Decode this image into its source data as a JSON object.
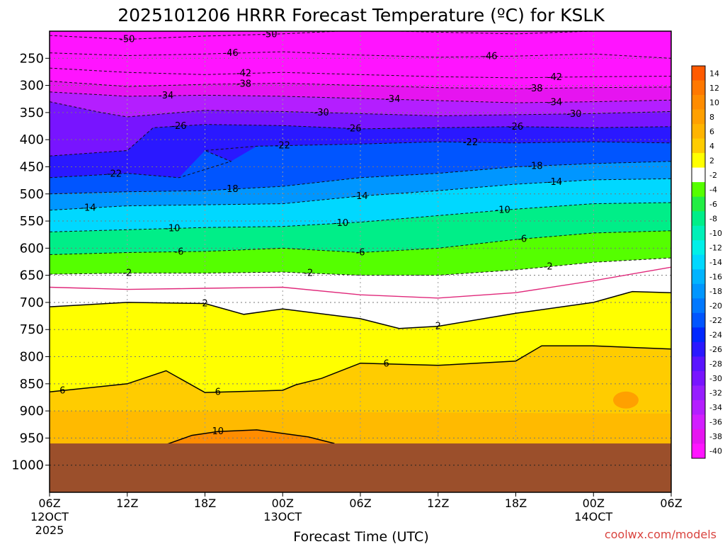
{
  "chart_data": {
    "type": "heatmap",
    "title": "2025101206 HRRR Forecast Temperature (ºC) for KSLK",
    "xlabel": "Forecast Time (UTC)",
    "ylabel": "",
    "credit": "coolwx.com/models",
    "x": [
      {
        "hour": 0,
        "label": "06Z",
        "date": "12OCT",
        "year": "2025"
      },
      {
        "hour": 6,
        "label": "12Z"
      },
      {
        "hour": 12,
        "label": "18Z"
      },
      {
        "hour": 18,
        "label": "00Z",
        "date": "13OCT"
      },
      {
        "hour": 24,
        "label": "06Z"
      },
      {
        "hour": 30,
        "label": "12Z"
      },
      {
        "hour": 36,
        "label": "18Z"
      },
      {
        "hour": 42,
        "label": "00Z",
        "date": "14OCT"
      },
      {
        "hour": 48,
        "label": "06Z"
      }
    ],
    "y_ticks": [
      "250",
      "300",
      "350",
      "400",
      "450",
      "500",
      "550",
      "600",
      "650",
      "700",
      "750",
      "800",
      "850",
      "900",
      "950",
      "1000"
    ],
    "ylim": [
      1050,
      200
    ],
    "xlim": [
      0,
      48
    ],
    "ground_pressure": 960,
    "colorbar": {
      "labels": [
        "14",
        "12",
        "10",
        "8",
        "6",
        "4",
        "2",
        "-2",
        "-4",
        "-6",
        "-8",
        "-10",
        "-12",
        "-14",
        "-16",
        "-18",
        "-20",
        "-22",
        "-24",
        "-26",
        "-28",
        "-30",
        "-32",
        "-34",
        "-36",
        "-38",
        "-40"
      ],
      "colors": [
        "#ff5a00",
        "#ff7800",
        "#ff8c00",
        "#ffa000",
        "#ffb400",
        "#ffcc00",
        "#ffff00",
        "#ffffff",
        "#55ff00",
        "#22ee44",
        "#00ee88",
        "#00f0b8",
        "#00f0e8",
        "#00d8ff",
        "#00b4ff",
        "#0096ff",
        "#0078ff",
        "#0055ff",
        "#0028ff",
        "#2a18ff",
        "#5a14ff",
        "#7814ff",
        "#961eff",
        "#b41eff",
        "#d21eff",
        "#e614f0",
        "#ff14ff"
      ]
    },
    "layer_colors": [
      {
        "t": -50,
        "color": "#ff14ff"
      },
      {
        "t": -42,
        "color": "#ff14ff"
      },
      {
        "t": -38,
        "color": "#e614f0"
      },
      {
        "t": -34,
        "color": "#b41eff"
      },
      {
        "t": -30,
        "color": "#7814ff"
      },
      {
        "t": -26,
        "color": "#2a18ff"
      },
      {
        "t": -22,
        "color": "#0055ff"
      },
      {
        "t": -18,
        "color": "#0096ff"
      },
      {
        "t": -14,
        "color": "#00d8ff"
      },
      {
        "t": -10,
        "color": "#00ee88"
      },
      {
        "t": -6,
        "color": "#55ff00"
      },
      {
        "t": -2,
        "color": "#ffffff"
      },
      {
        "t": 2,
        "color": "#ffff00"
      },
      {
        "t": 6,
        "color": "#ffcc00"
      },
      {
        "t": 10,
        "color": "#ffa000"
      },
      {
        "t": 14,
        "color": "#ff7800"
      }
    ],
    "contours": [
      {
        "value": -50,
        "label": "-50",
        "style": "dashed",
        "label_hours": [
          6,
          17
        ],
        "pressure": [
          [
            0,
            208
          ],
          [
            6,
            215
          ],
          [
            12,
            209
          ],
          [
            18,
            205
          ],
          [
            24,
            198
          ],
          [
            30,
            202
          ],
          [
            36,
            205
          ],
          [
            42,
            200
          ],
          [
            48,
            193
          ]
        ]
      },
      {
        "value": -46,
        "label": "-46",
        "style": "dashed",
        "label_hours": [
          14,
          34
        ],
        "pressure": [
          [
            0,
            240
          ],
          [
            6,
            245
          ],
          [
            12,
            242
          ],
          [
            18,
            238
          ],
          [
            24,
            244
          ],
          [
            30,
            248
          ],
          [
            36,
            246
          ],
          [
            42,
            242
          ],
          [
            48,
            250
          ]
        ]
      },
      {
        "value": -42,
        "label": "-42",
        "style": "dashed",
        "label_hours": [
          15,
          39
        ],
        "pressure": [
          [
            0,
            268
          ],
          [
            6,
            276
          ],
          [
            12,
            280
          ],
          [
            18,
            276
          ],
          [
            24,
            280
          ],
          [
            30,
            284
          ],
          [
            36,
            286
          ],
          [
            42,
            284
          ],
          [
            48,
            283
          ]
        ]
      },
      {
        "value": -38,
        "label": "-38",
        "style": "dashed",
        "label_hours": [
          15,
          37.5
        ],
        "pressure": [
          [
            0,
            292
          ],
          [
            6,
            302
          ],
          [
            12,
            298
          ],
          [
            18,
            296
          ],
          [
            24,
            300
          ],
          [
            30,
            304
          ],
          [
            36,
            306
          ],
          [
            42,
            304
          ],
          [
            48,
            303
          ]
        ]
      },
      {
        "value": -34,
        "label": "-34",
        "style": "dashed",
        "label_hours": [
          9,
          26.5,
          39
        ],
        "pressure": [
          [
            0,
            312
          ],
          [
            6,
            320
          ],
          [
            12,
            318
          ],
          [
            18,
            320
          ],
          [
            24,
            324
          ],
          [
            30,
            328
          ],
          [
            36,
            332
          ],
          [
            42,
            330
          ],
          [
            48,
            327
          ]
        ]
      },
      {
        "value": -30,
        "label": "-30",
        "style": "dashed",
        "label_hours": [
          21,
          40.5
        ],
        "pressure": [
          [
            0,
            330
          ],
          [
            4,
            350
          ],
          [
            6,
            358
          ],
          [
            12,
            346
          ],
          [
            18,
            348
          ],
          [
            24,
            352
          ],
          [
            30,
            356
          ],
          [
            36,
            354
          ],
          [
            42,
            352
          ],
          [
            48,
            348
          ]
        ]
      },
      {
        "value": -26,
        "label": "-26",
        "style": "dashed",
        "label_hours": [
          10,
          23.5,
          36
        ],
        "pressure": [
          [
            0,
            430
          ],
          [
            6,
            420
          ],
          [
            8,
            378
          ],
          [
            12,
            372
          ],
          [
            18,
            374
          ],
          [
            24,
            380
          ],
          [
            30,
            378
          ],
          [
            36,
            376
          ],
          [
            42,
            378
          ],
          [
            48,
            376
          ]
        ]
      },
      {
        "value": -22,
        "label": "-22",
        "style": "dashed",
        "label_hours": [
          5,
          18,
          32.5
        ],
        "pressure": [
          [
            0,
            470
          ],
          [
            6,
            462
          ],
          [
            10,
            470
          ],
          [
            14,
            440
          ],
          [
            12,
            420
          ],
          [
            16,
            412
          ],
          [
            24,
            408
          ],
          [
            30,
            404
          ],
          [
            36,
            406
          ],
          [
            42,
            404
          ],
          [
            48,
            406
          ]
        ]
      },
      {
        "value": -18,
        "label": "-18",
        "style": "dashed",
        "label_hours": [
          14,
          37.5
        ],
        "pressure": [
          [
            0,
            500
          ],
          [
            6,
            496
          ],
          [
            12,
            494
          ],
          [
            18,
            486
          ],
          [
            24,
            470
          ],
          [
            30,
            462
          ],
          [
            36,
            450
          ],
          [
            42,
            444
          ],
          [
            48,
            440
          ]
        ]
      },
      {
        "value": -14,
        "label": "-14",
        "style": "dashed",
        "label_hours": [
          3,
          24,
          39
        ],
        "pressure": [
          [
            0,
            530
          ],
          [
            6,
            522
          ],
          [
            12,
            520
          ],
          [
            18,
            518
          ],
          [
            24,
            504
          ],
          [
            30,
            494
          ],
          [
            36,
            482
          ],
          [
            42,
            474
          ],
          [
            48,
            472
          ]
        ]
      },
      {
        "value": -10,
        "label": "-10",
        "style": "dashed",
        "label_hours": [
          9.5,
          22.5,
          35
        ],
        "pressure": [
          [
            0,
            570
          ],
          [
            6,
            566
          ],
          [
            12,
            562
          ],
          [
            18,
            560
          ],
          [
            24,
            552
          ],
          [
            30,
            540
          ],
          [
            36,
            528
          ],
          [
            42,
            518
          ],
          [
            48,
            516
          ]
        ]
      },
      {
        "value": -6,
        "label": "-6",
        "style": "dashed",
        "label_hours": [
          10,
          24,
          36.5
        ],
        "pressure": [
          [
            0,
            612
          ],
          [
            6,
            608
          ],
          [
            12,
            606
          ],
          [
            18,
            600
          ],
          [
            24,
            608
          ],
          [
            30,
            600
          ],
          [
            36,
            584
          ],
          [
            42,
            572
          ],
          [
            48,
            568
          ]
        ]
      },
      {
        "value": -2,
        "label": "-2",
        "style": "dashed",
        "label_hours": [
          6,
          20,
          38.5
        ],
        "pressure": [
          [
            0,
            648
          ],
          [
            6,
            646
          ],
          [
            12,
            646
          ],
          [
            18,
            644
          ],
          [
            24,
            650
          ],
          [
            30,
            650
          ],
          [
            36,
            640
          ],
          [
            42,
            626
          ],
          [
            48,
            618
          ]
        ]
      },
      {
        "value": 0,
        "label": "",
        "style": "freezing",
        "label_hours": [],
        "pressure": [
          [
            0,
            672
          ],
          [
            6,
            676
          ],
          [
            12,
            674
          ],
          [
            18,
            672
          ],
          [
            24,
            686
          ],
          [
            30,
            692
          ],
          [
            36,
            682
          ],
          [
            42,
            660
          ],
          [
            48,
            635
          ]
        ]
      },
      {
        "value": 2,
        "label": "2",
        "style": "solid",
        "label_hours": [
          12,
          30
        ],
        "pressure": [
          [
            0,
            708
          ],
          [
            6,
            700
          ],
          [
            12,
            702
          ],
          [
            15,
            722
          ],
          [
            18,
            712
          ],
          [
            24,
            730
          ],
          [
            27,
            748
          ],
          [
            30,
            744
          ],
          [
            36,
            720
          ],
          [
            42,
            700
          ],
          [
            45,
            680
          ],
          [
            48,
            682
          ]
        ]
      },
      {
        "value": 6,
        "label": "6",
        "style": "solid",
        "label_hours": [
          1,
          13,
          26
        ],
        "pressure": [
          [
            0,
            865
          ],
          [
            6,
            850
          ],
          [
            9,
            826
          ],
          [
            12,
            866
          ],
          [
            18,
            862
          ],
          [
            19,
            852
          ],
          [
            21,
            840
          ],
          [
            24,
            812
          ],
          [
            30,
            816
          ],
          [
            36,
            808
          ],
          [
            38,
            780
          ],
          [
            42,
            780
          ],
          [
            48,
            786
          ]
        ]
      },
      {
        "value": 10,
        "label": "10",
        "style": "solid",
        "label_hours": [
          13
        ],
        "pressure": [
          [
            9,
            962
          ],
          [
            11,
            945
          ],
          [
            13,
            938
          ],
          [
            16,
            935
          ],
          [
            20,
            948
          ],
          [
            22,
            960
          ]
        ]
      }
    ]
  }
}
